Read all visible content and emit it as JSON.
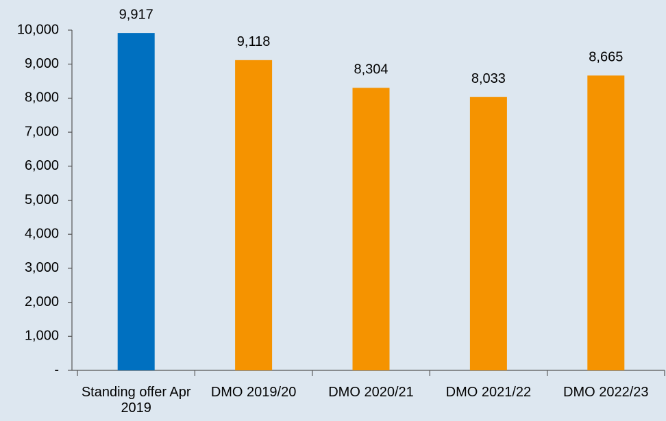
{
  "chart_data": {
    "type": "bar",
    "categories": [
      "Standing offer Apr 2019",
      "DMO 2019/20",
      "DMO 2020/21",
      "DMO 2021/22",
      "DMO 2022/23"
    ],
    "values": [
      9917,
      9118,
      8304,
      8033,
      8665
    ],
    "value_labels": [
      "9,917",
      "9,118",
      "8,304",
      "8,033",
      "8,665"
    ],
    "colors": [
      "#0070c0",
      "#f59300",
      "#f59300",
      "#f59300",
      "#f59300"
    ],
    "ylim": [
      0,
      10000
    ],
    "yticks": [
      {
        "value": 0,
        "label": "-"
      },
      {
        "value": 1000,
        "label": "1,000"
      },
      {
        "value": 2000,
        "label": "2,000"
      },
      {
        "value": 3000,
        "label": "3,000"
      },
      {
        "value": 4000,
        "label": "4,000"
      },
      {
        "value": 5000,
        "label": "5,000"
      },
      {
        "value": 6000,
        "label": "6,000"
      },
      {
        "value": 7000,
        "label": "7,000"
      },
      {
        "value": 8000,
        "label": "8,000"
      },
      {
        "value": 9000,
        "label": "9,000"
      },
      {
        "value": 10000,
        "label": "10,000"
      }
    ],
    "grid": false
  }
}
